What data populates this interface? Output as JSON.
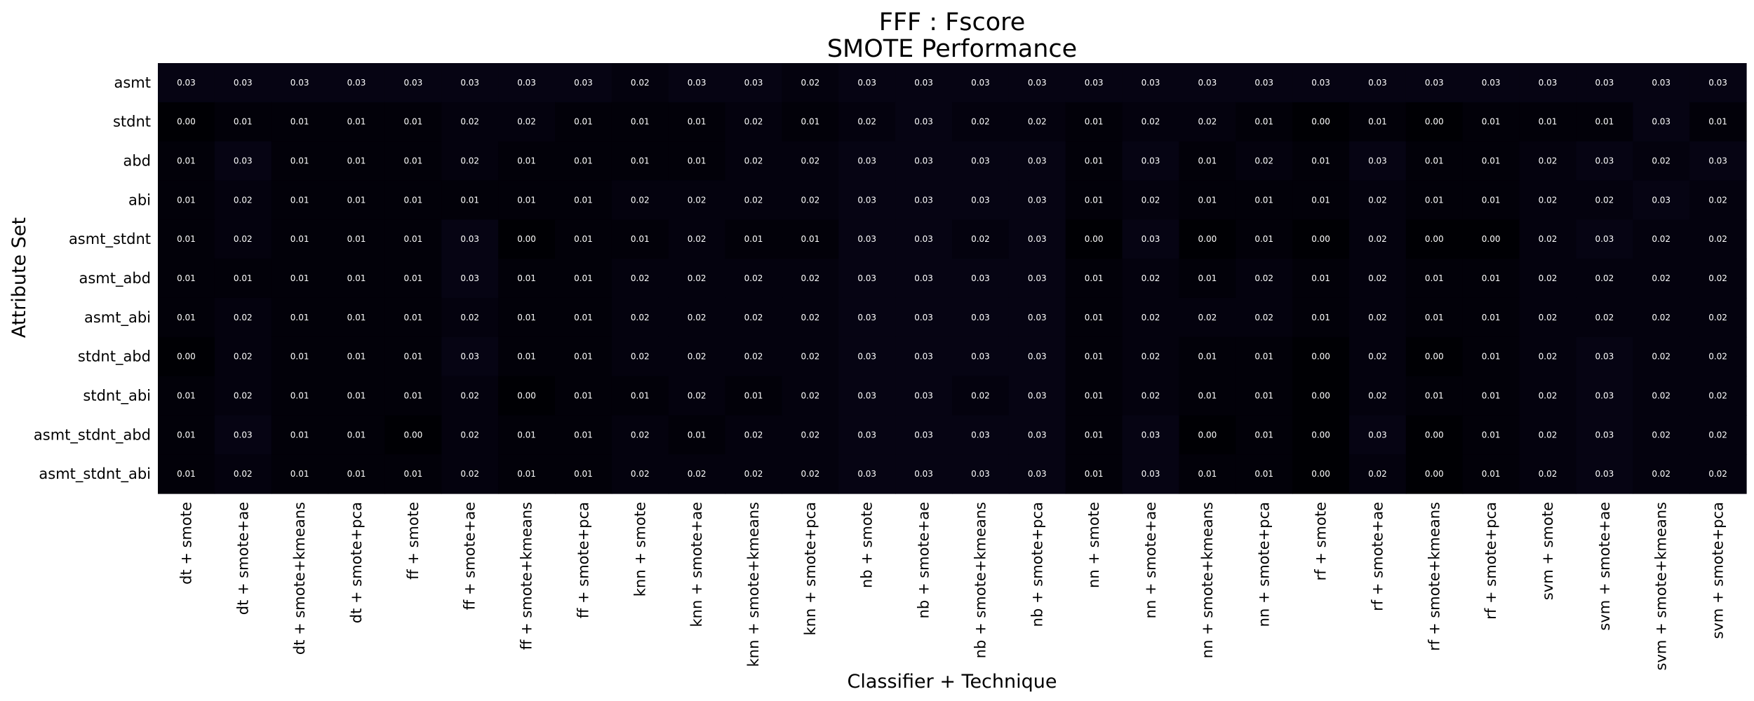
{
  "chart_data": {
    "type": "heatmap",
    "title": "FFF : Fscore",
    "subtitle": "SMOTE Performance",
    "xlabel": "Classifier + Technique",
    "ylabel": "Attribute Set",
    "colormap": "magma",
    "color_range": [
      0,
      1
    ],
    "x_categories": [
      "dt + smote",
      "dt + smote+ae",
      "dt + smote+kmeans",
      "dt + smote+pca",
      "ff + smote",
      "ff + smote+ae",
      "ff + smote+kmeans",
      "ff + smote+pca",
      "knn + smote",
      "knn + smote+ae",
      "knn + smote+kmeans",
      "knn + smote+pca",
      "nb + smote",
      "nb + smote+ae",
      "nb + smote+kmeans",
      "nb + smote+pca",
      "nn + smote",
      "nn + smote+ae",
      "nn + smote+kmeans",
      "nn + smote+pca",
      "rf + smote",
      "rf + smote+ae",
      "rf + smote+kmeans",
      "rf + smote+pca",
      "svm + smote",
      "svm + smote+ae",
      "svm + smote+kmeans",
      "svm + smote+pca"
    ],
    "y_categories": [
      "asmt",
      "stdnt",
      "abd",
      "abi",
      "asmt_stdnt",
      "asmt_abd",
      "asmt_abi",
      "stdnt_abd",
      "stdnt_abi",
      "asmt_stdnt_abd",
      "asmt_stdnt_abi"
    ],
    "values": [
      [
        0.03,
        0.03,
        0.03,
        0.03,
        0.03,
        0.03,
        0.03,
        0.03,
        0.02,
        0.03,
        0.03,
        0.02,
        0.03,
        0.03,
        0.03,
        0.03,
        0.03,
        0.03,
        0.03,
        0.03,
        0.03,
        0.03,
        0.03,
        0.03,
        0.03,
        0.03,
        0.03,
        0.03
      ],
      [
        0.0,
        0.01,
        0.01,
        0.01,
        0.01,
        0.02,
        0.02,
        0.01,
        0.01,
        0.01,
        0.02,
        0.01,
        0.02,
        0.03,
        0.02,
        0.02,
        0.01,
        0.02,
        0.02,
        0.01,
        0.0,
        0.01,
        0.0,
        0.01,
        0.01,
        0.01,
        0.03,
        0.01
      ],
      [
        0.01,
        0.03,
        0.01,
        0.01,
        0.01,
        0.02,
        0.01,
        0.01,
        0.01,
        0.01,
        0.02,
        0.02,
        0.03,
        0.03,
        0.03,
        0.03,
        0.01,
        0.03,
        0.01,
        0.02,
        0.01,
        0.03,
        0.01,
        0.01,
        0.02,
        0.03,
        0.02,
        0.03
      ],
      [
        0.01,
        0.02,
        0.01,
        0.01,
        0.01,
        0.01,
        0.01,
        0.01,
        0.02,
        0.02,
        0.02,
        0.02,
        0.03,
        0.03,
        0.03,
        0.03,
        0.01,
        0.02,
        0.01,
        0.01,
        0.01,
        0.02,
        0.01,
        0.01,
        0.02,
        0.02,
        0.03,
        0.02
      ],
      [
        0.01,
        0.02,
        0.01,
        0.01,
        0.01,
        0.03,
        0.0,
        0.01,
        0.01,
        0.02,
        0.01,
        0.01,
        0.03,
        0.03,
        0.02,
        0.03,
        0.0,
        0.03,
        0.0,
        0.01,
        0.0,
        0.02,
        0.0,
        0.0,
        0.02,
        0.03,
        0.02,
        0.02
      ],
      [
        0.01,
        0.01,
        0.01,
        0.01,
        0.01,
        0.03,
        0.01,
        0.01,
        0.02,
        0.02,
        0.02,
        0.02,
        0.03,
        0.03,
        0.03,
        0.03,
        0.01,
        0.02,
        0.01,
        0.02,
        0.01,
        0.02,
        0.01,
        0.01,
        0.02,
        0.02,
        0.02,
        0.02
      ],
      [
        0.01,
        0.02,
        0.01,
        0.01,
        0.01,
        0.02,
        0.01,
        0.01,
        0.02,
        0.02,
        0.02,
        0.02,
        0.03,
        0.03,
        0.03,
        0.03,
        0.01,
        0.02,
        0.02,
        0.02,
        0.01,
        0.02,
        0.01,
        0.01,
        0.02,
        0.02,
        0.02,
        0.02
      ],
      [
        0.0,
        0.02,
        0.01,
        0.01,
        0.01,
        0.03,
        0.01,
        0.01,
        0.02,
        0.02,
        0.02,
        0.02,
        0.03,
        0.03,
        0.03,
        0.03,
        0.01,
        0.02,
        0.01,
        0.01,
        0.0,
        0.02,
        0.0,
        0.01,
        0.02,
        0.03,
        0.02,
        0.02
      ],
      [
        0.01,
        0.02,
        0.01,
        0.01,
        0.01,
        0.02,
        0.0,
        0.01,
        0.01,
        0.02,
        0.01,
        0.02,
        0.03,
        0.03,
        0.02,
        0.03,
        0.01,
        0.02,
        0.01,
        0.01,
        0.0,
        0.02,
        0.01,
        0.01,
        0.02,
        0.03,
        0.02,
        0.02
      ],
      [
        0.01,
        0.03,
        0.01,
        0.01,
        0.0,
        0.02,
        0.01,
        0.01,
        0.02,
        0.01,
        0.02,
        0.02,
        0.03,
        0.03,
        0.03,
        0.03,
        0.01,
        0.03,
        0.0,
        0.01,
        0.0,
        0.03,
        0.0,
        0.01,
        0.02,
        0.03,
        0.02,
        0.02
      ],
      [
        0.01,
        0.02,
        0.01,
        0.01,
        0.01,
        0.02,
        0.01,
        0.01,
        0.02,
        0.02,
        0.02,
        0.02,
        0.03,
        0.03,
        0.03,
        0.03,
        0.01,
        0.03,
        0.01,
        0.01,
        0.0,
        0.02,
        0.0,
        0.01,
        0.02,
        0.03,
        0.02,
        0.02
      ]
    ],
    "value_format": "0.00",
    "grid": false,
    "legend": "none"
  }
}
